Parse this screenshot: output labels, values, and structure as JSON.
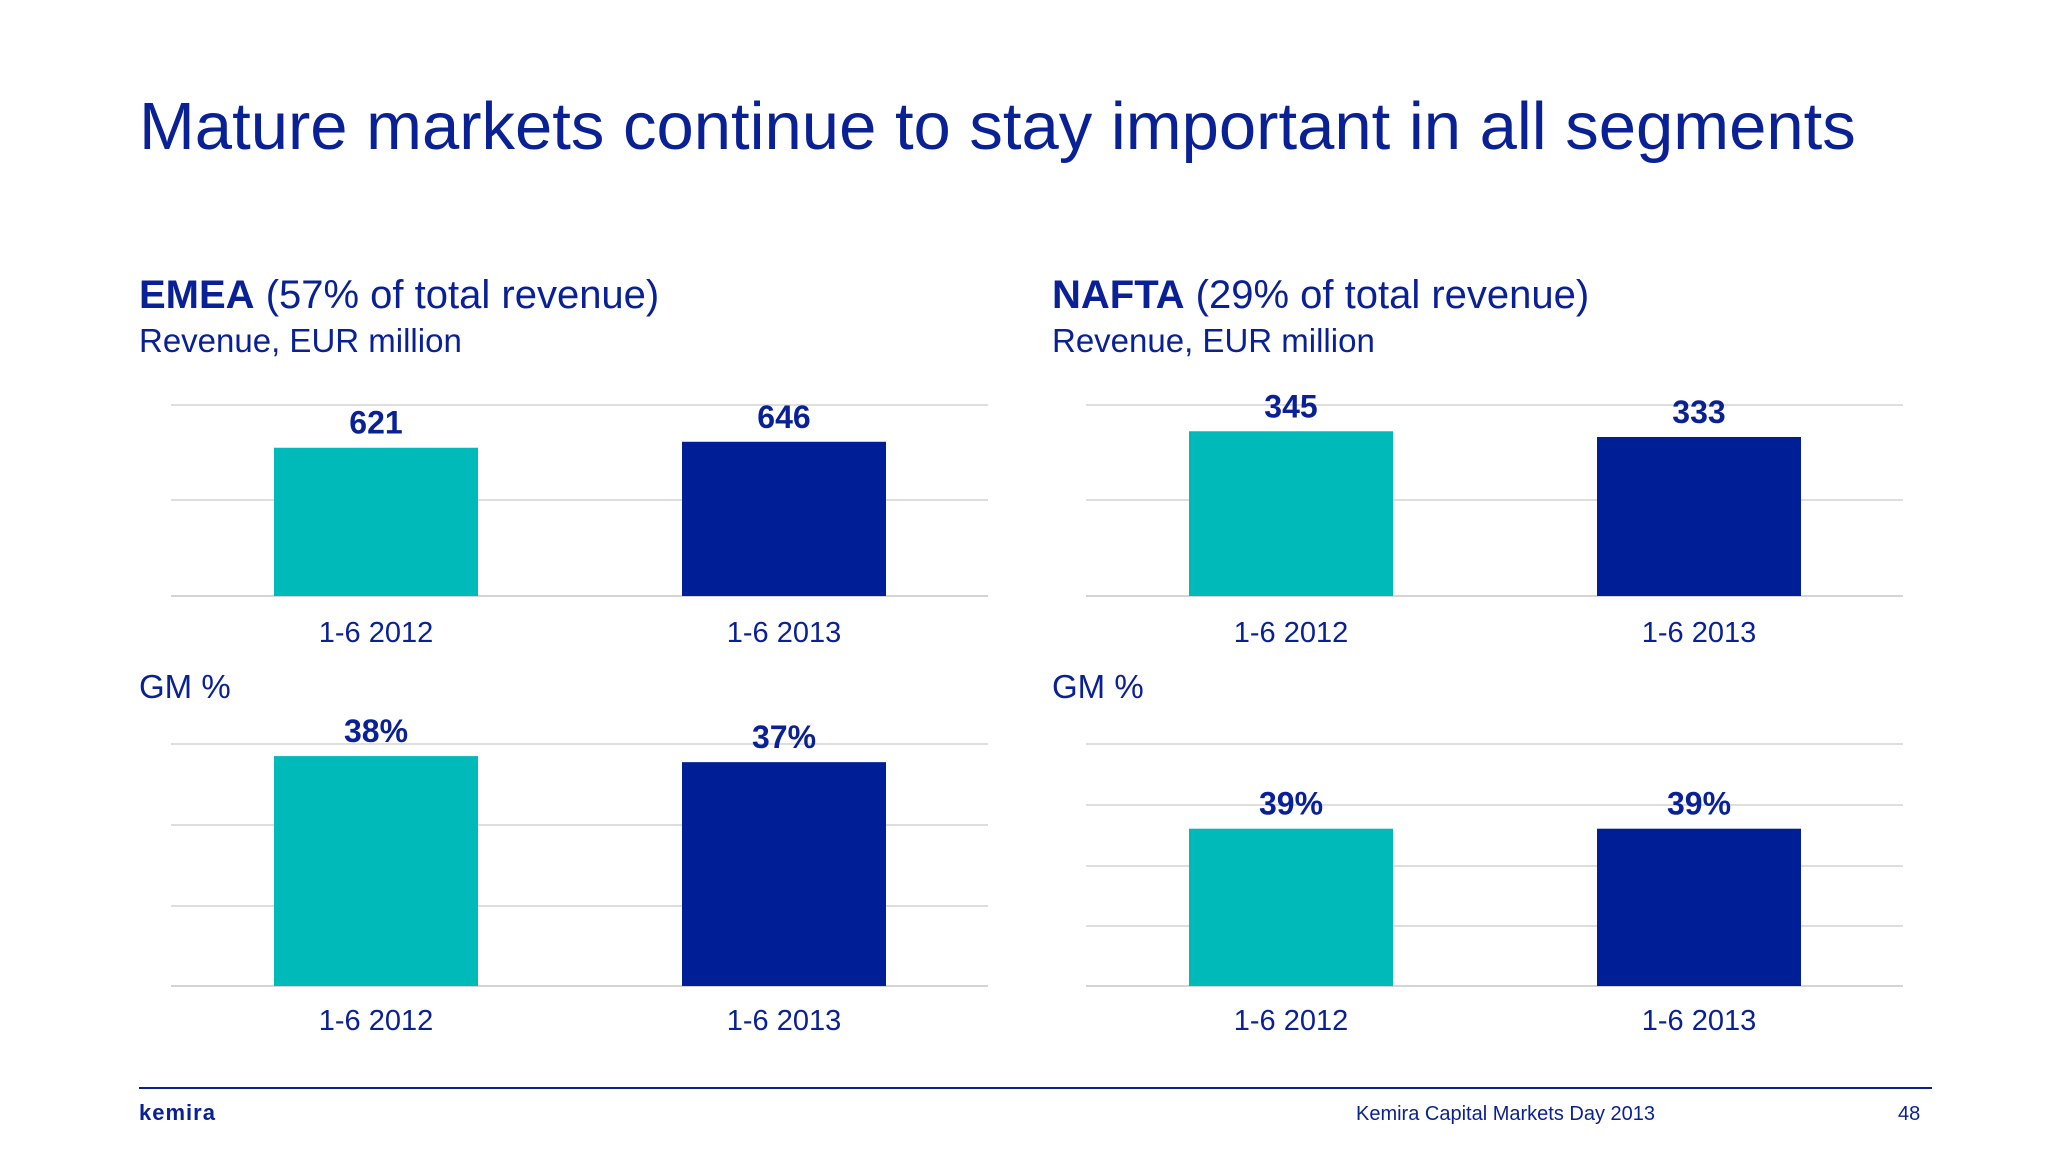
{
  "slide": {
    "title": "Mature markets continue to stay important in all segments",
    "footer": "Kemira Capital Markets Day 2013",
    "page_number": "48",
    "logo": "kemira"
  },
  "panels": {
    "emea": {
      "region": "EMEA",
      "share": " (57% of total revenue)",
      "subtitle": "Revenue, EUR million",
      "gm_label": "GM %"
    },
    "nafta": {
      "region": "NAFTA",
      "share": " (29% of total revenue)",
      "subtitle": "Revenue, EUR million",
      "gm_label": "GM %"
    }
  },
  "colors": {
    "series_2012": "#00b9b9",
    "series_2013": "#001f96",
    "text": "#0a2196",
    "gridline": "#d4d4d4"
  },
  "chart_data": [
    {
      "id": "emea-revenue",
      "type": "bar",
      "categories": [
        "1-6 2012",
        "1-6 2013"
      ],
      "values": [
        621,
        646
      ],
      "labels": [
        "621",
        "646"
      ],
      "ylim": [
        0,
        800
      ],
      "grid": true
    },
    {
      "id": "nafta-revenue",
      "type": "bar",
      "categories": [
        "1-6 2012",
        "1-6 2013"
      ],
      "values": [
        345,
        333
      ],
      "labels": [
        "345",
        "333"
      ],
      "ylim": [
        0,
        400
      ],
      "grid": true
    },
    {
      "id": "emea-gm",
      "type": "bar",
      "categories": [
        "1-6 2012",
        "1-6 2013"
      ],
      "values": [
        38,
        37
      ],
      "labels": [
        "38%",
        "37%"
      ],
      "ylim": [
        0,
        40
      ],
      "grid": true
    },
    {
      "id": "nafta-gm",
      "type": "bar",
      "categories": [
        "1-6 2012",
        "1-6 2013"
      ],
      "values": [
        39,
        39
      ],
      "labels": [
        "39%",
        "39%"
      ],
      "ylim": [
        0,
        60
      ],
      "grid": true
    }
  ]
}
